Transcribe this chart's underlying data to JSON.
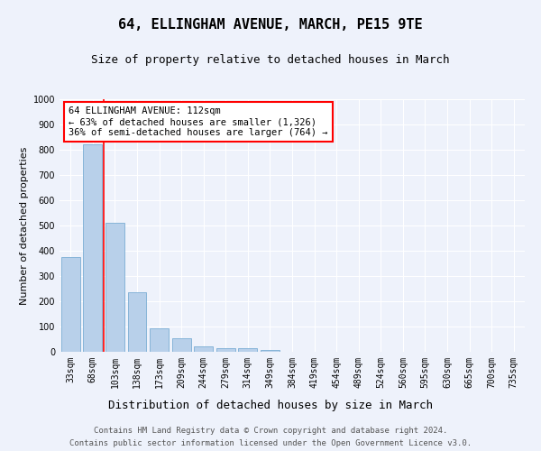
{
  "title1": "64, ELLINGHAM AVENUE, MARCH, PE15 9TE",
  "title2": "Size of property relative to detached houses in March",
  "xlabel": "Distribution of detached houses by size in March",
  "ylabel": "Number of detached properties",
  "categories": [
    "33sqm",
    "68sqm",
    "103sqm",
    "138sqm",
    "173sqm",
    "209sqm",
    "244sqm",
    "279sqm",
    "314sqm",
    "349sqm",
    "384sqm",
    "419sqm",
    "454sqm",
    "489sqm",
    "524sqm",
    "560sqm",
    "595sqm",
    "630sqm",
    "665sqm",
    "700sqm",
    "735sqm"
  ],
  "values": [
    375,
    820,
    510,
    237,
    92,
    52,
    20,
    14,
    13,
    8,
    0,
    0,
    0,
    0,
    0,
    0,
    0,
    0,
    0,
    0,
    0
  ],
  "bar_color": "#b8d0ea",
  "bar_edge_color": "#7aadd4",
  "ylim": [
    0,
    1000
  ],
  "yticks": [
    0,
    100,
    200,
    300,
    400,
    500,
    600,
    700,
    800,
    900,
    1000
  ],
  "property_line_x": 1.5,
  "annotation_title": "64 ELLINGHAM AVENUE: 112sqm",
  "annotation_line1": "← 63% of detached houses are smaller (1,326)",
  "annotation_line2": "36% of semi-detached houses are larger (764) →",
  "footer1": "Contains HM Land Registry data © Crown copyright and database right 2024.",
  "footer2": "Contains public sector information licensed under the Open Government Licence v3.0.",
  "background_color": "#eef2fb",
  "plot_bg_color": "#eef2fb",
  "grid_color": "#ffffff",
  "title1_fontsize": 11,
  "title2_fontsize": 9,
  "xlabel_fontsize": 9,
  "ylabel_fontsize": 8,
  "tick_fontsize": 7,
  "annotation_fontsize": 7.5,
  "footer_fontsize": 6.5
}
